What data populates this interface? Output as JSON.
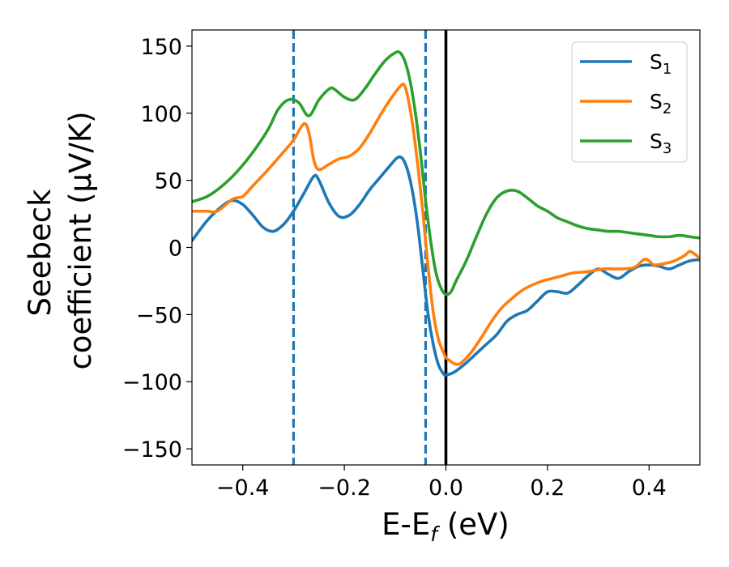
{
  "chart_data": {
    "type": "line",
    "xlabel_parts": [
      "E-E",
      "f",
      " (eV)"
    ],
    "ylabel_lines": [
      "Seebeck",
      "coefficient  (μV/K)"
    ],
    "xlim": [
      -0.5,
      0.5
    ],
    "ylim": [
      -162,
      162
    ],
    "xticks": [
      -0.4,
      -0.2,
      0.0,
      0.2,
      0.4
    ],
    "xtick_labels": [
      "−0.4",
      "−0.2",
      "0.0",
      "0.2",
      "0.4"
    ],
    "yticks": [
      -150,
      -100,
      -50,
      0,
      50,
      100,
      150
    ],
    "ytick_labels": [
      "−150",
      "−100",
      "−50",
      "0",
      "50",
      "100",
      "150"
    ],
    "grid": false,
    "legend": "upper right",
    "vlines": [
      {
        "x": -0.3,
        "color": "#1f77b4",
        "style": "dashed"
      },
      {
        "x": -0.04,
        "color": "#1f77b4",
        "style": "dashed"
      },
      {
        "x": 0.0,
        "color": "#000000",
        "style": "solid"
      }
    ],
    "series": [
      {
        "name": "S1",
        "base": "S",
        "sub": "1",
        "color": "#1f77b4",
        "points": [
          [
            -0.5,
            5
          ],
          [
            -0.47,
            20
          ],
          [
            -0.44,
            31
          ],
          [
            -0.42,
            35
          ],
          [
            -0.4,
            32
          ],
          [
            -0.38,
            24
          ],
          [
            -0.36,
            15
          ],
          [
            -0.34,
            12
          ],
          [
            -0.32,
            17
          ],
          [
            -0.3,
            27
          ],
          [
            -0.28,
            40
          ],
          [
            -0.26,
            53
          ],
          [
            -0.25,
            50
          ],
          [
            -0.23,
            33
          ],
          [
            -0.21,
            23
          ],
          [
            -0.19,
            24
          ],
          [
            -0.17,
            32
          ],
          [
            -0.15,
            43
          ],
          [
            -0.13,
            52
          ],
          [
            -0.11,
            61
          ],
          [
            -0.095,
            67
          ],
          [
            -0.085,
            66
          ],
          [
            -0.075,
            57
          ],
          [
            -0.065,
            40
          ],
          [
            -0.055,
            15
          ],
          [
            -0.045,
            -18
          ],
          [
            -0.035,
            -50
          ],
          [
            -0.025,
            -72
          ],
          [
            -0.015,
            -87
          ],
          [
            -0.005,
            -94
          ],
          [
            0.0,
            -95
          ],
          [
            0.01,
            -94
          ],
          [
            0.02,
            -92
          ],
          [
            0.04,
            -86
          ],
          [
            0.06,
            -79
          ],
          [
            0.08,
            -72
          ],
          [
            0.1,
            -65
          ],
          [
            0.12,
            -55
          ],
          [
            0.14,
            -50
          ],
          [
            0.16,
            -47
          ],
          [
            0.18,
            -40
          ],
          [
            0.2,
            -33
          ],
          [
            0.22,
            -33
          ],
          [
            0.24,
            -34
          ],
          [
            0.26,
            -28
          ],
          [
            0.28,
            -21
          ],
          [
            0.3,
            -16
          ],
          [
            0.32,
            -20
          ],
          [
            0.34,
            -23
          ],
          [
            0.36,
            -18
          ],
          [
            0.38,
            -14
          ],
          [
            0.4,
            -13
          ],
          [
            0.42,
            -14
          ],
          [
            0.44,
            -16
          ],
          [
            0.46,
            -13
          ],
          [
            0.48,
            -10
          ],
          [
            0.5,
            -9
          ]
        ]
      },
      {
        "name": "S2",
        "base": "S",
        "sub": "2",
        "color": "#ff7f0e",
        "points": [
          [
            -0.5,
            27
          ],
          [
            -0.47,
            27
          ],
          [
            -0.45,
            27
          ],
          [
            -0.42,
            36
          ],
          [
            -0.4,
            38
          ],
          [
            -0.38,
            46
          ],
          [
            -0.35,
            58
          ],
          [
            -0.32,
            71
          ],
          [
            -0.3,
            80
          ],
          [
            -0.28,
            92
          ],
          [
            -0.27,
            86
          ],
          [
            -0.26,
            65
          ],
          [
            -0.25,
            58
          ],
          [
            -0.23,
            62
          ],
          [
            -0.21,
            66
          ],
          [
            -0.19,
            68
          ],
          [
            -0.17,
            74
          ],
          [
            -0.15,
            85
          ],
          [
            -0.13,
            98
          ],
          [
            -0.11,
            110
          ],
          [
            -0.09,
            120
          ],
          [
            -0.082,
            121
          ],
          [
            -0.075,
            112
          ],
          [
            -0.065,
            90
          ],
          [
            -0.055,
            60
          ],
          [
            -0.045,
            25
          ],
          [
            -0.035,
            -15
          ],
          [
            -0.025,
            -48
          ],
          [
            -0.015,
            -68
          ],
          [
            -0.005,
            -78
          ],
          [
            0.0,
            -82
          ],
          [
            0.01,
            -85
          ],
          [
            0.02,
            -87
          ],
          [
            0.03,
            -86
          ],
          [
            0.05,
            -78
          ],
          [
            0.07,
            -67
          ],
          [
            0.09,
            -55
          ],
          [
            0.11,
            -45
          ],
          [
            0.13,
            -38
          ],
          [
            0.15,
            -32
          ],
          [
            0.17,
            -28
          ],
          [
            0.19,
            -25
          ],
          [
            0.21,
            -23
          ],
          [
            0.23,
            -21
          ],
          [
            0.25,
            -19
          ],
          [
            0.28,
            -18
          ],
          [
            0.31,
            -16
          ],
          [
            0.34,
            -16
          ],
          [
            0.37,
            -15
          ],
          [
            0.39,
            -9
          ],
          [
            0.4,
            -10
          ],
          [
            0.41,
            -13
          ],
          [
            0.43,
            -12
          ],
          [
            0.45,
            -10
          ],
          [
            0.47,
            -6
          ],
          [
            0.48,
            -3
          ],
          [
            0.49,
            -5
          ],
          [
            0.5,
            -8
          ]
        ]
      },
      {
        "name": "S3",
        "base": "S",
        "sub": "3",
        "color": "#2ca02c",
        "points": [
          [
            -0.5,
            34
          ],
          [
            -0.47,
            38
          ],
          [
            -0.44,
            46
          ],
          [
            -0.41,
            57
          ],
          [
            -0.38,
            71
          ],
          [
            -0.35,
            88
          ],
          [
            -0.33,
            103
          ],
          [
            -0.31,
            110
          ],
          [
            -0.29,
            108
          ],
          [
            -0.27,
            98
          ],
          [
            -0.25,
            110
          ],
          [
            -0.23,
            118
          ],
          [
            -0.22,
            118
          ],
          [
            -0.2,
            112
          ],
          [
            -0.18,
            110
          ],
          [
            -0.16,
            118
          ],
          [
            -0.14,
            129
          ],
          [
            -0.12,
            139
          ],
          [
            -0.1,
            145
          ],
          [
            -0.09,
            145
          ],
          [
            -0.08,
            138
          ],
          [
            -0.07,
            123
          ],
          [
            -0.06,
            100
          ],
          [
            -0.05,
            70
          ],
          [
            -0.04,
            35
          ],
          [
            -0.03,
            5
          ],
          [
            -0.02,
            -18
          ],
          [
            -0.01,
            -30
          ],
          [
            0.0,
            -35
          ],
          [
            0.01,
            -33
          ],
          [
            0.02,
            -25
          ],
          [
            0.04,
            -10
          ],
          [
            0.06,
            8
          ],
          [
            0.08,
            25
          ],
          [
            0.1,
            37
          ],
          [
            0.12,
            42
          ],
          [
            0.14,
            42
          ],
          [
            0.16,
            37
          ],
          [
            0.18,
            31
          ],
          [
            0.2,
            27
          ],
          [
            0.22,
            22
          ],
          [
            0.24,
            19
          ],
          [
            0.26,
            16
          ],
          [
            0.28,
            14
          ],
          [
            0.3,
            13
          ],
          [
            0.32,
            12
          ],
          [
            0.34,
            12
          ],
          [
            0.36,
            11
          ],
          [
            0.38,
            10
          ],
          [
            0.4,
            9
          ],
          [
            0.42,
            8
          ],
          [
            0.44,
            8
          ],
          [
            0.46,
            9
          ],
          [
            0.48,
            8
          ],
          [
            0.5,
            7
          ]
        ]
      }
    ]
  }
}
